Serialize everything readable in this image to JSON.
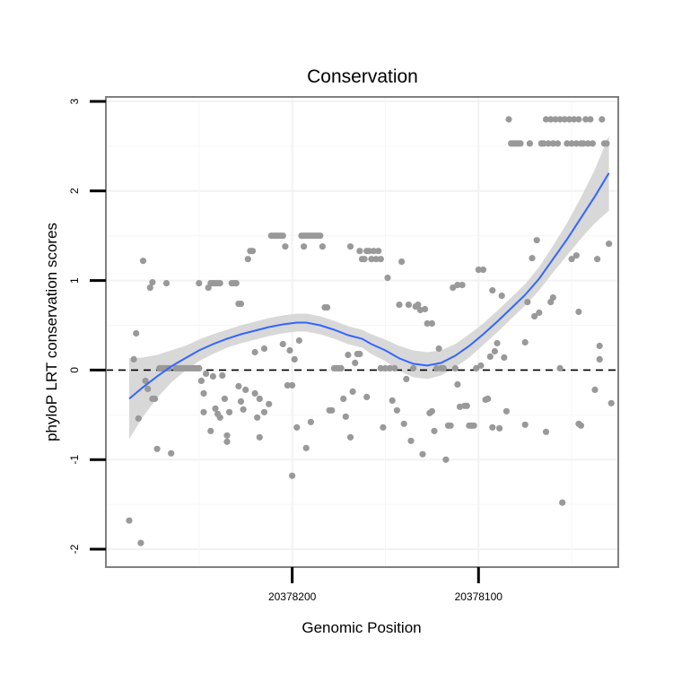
{
  "chart_data": {
    "type": "scatter",
    "title": "Conservation",
    "xlabel": "Genomic Position",
    "ylabel": "phyloP LRT conservation scores",
    "x_ticks": [
      {
        "label": "20378200",
        "at": 0.4
      },
      {
        "label": "20378100",
        "at": 0.8
      }
    ],
    "xlim": [
      0,
      1.1
    ],
    "ylim": [
      -2.2,
      3.05
    ],
    "y_ticks": [
      -2,
      -1,
      0,
      1,
      2,
      3
    ],
    "reference_line": {
      "y": 0,
      "style": "dashed",
      "color": "#000000"
    },
    "grid": true,
    "colors": {
      "points": "#999999",
      "smooth": "#3366ff",
      "band": "#d4d4d4",
      "panel_border": "#808080"
    },
    "points": [
      [
        0.05,
        -1.68
      ],
      [
        0.06,
        0.12
      ],
      [
        0.065,
        0.41
      ],
      [
        0.07,
        -0.54
      ],
      [
        0.075,
        -1.93
      ],
      [
        0.08,
        1.22
      ],
      [
        0.085,
        -0.12
      ],
      [
        0.09,
        -0.21
      ],
      [
        0.095,
        0.92
      ],
      [
        0.1,
        0.98
      ],
      [
        0.1,
        -0.32
      ],
      [
        0.105,
        -0.32
      ],
      [
        0.11,
        -0.88
      ],
      [
        0.115,
        0.02
      ],
      [
        0.12,
        0.02
      ],
      [
        0.125,
        0.02
      ],
      [
        0.13,
        0.02
      ],
      [
        0.135,
        0.02
      ],
      [
        0.13,
        0.97
      ],
      [
        0.14,
        -0.93
      ],
      [
        0.15,
        0.02
      ],
      [
        0.155,
        0.02
      ],
      [
        0.16,
        0.02
      ],
      [
        0.165,
        0.02
      ],
      [
        0.17,
        0.02
      ],
      [
        0.175,
        0.02
      ],
      [
        0.18,
        0.02
      ],
      [
        0.185,
        0.02
      ],
      [
        0.19,
        0.02
      ],
      [
        0.195,
        0.02
      ],
      [
        0.2,
        0.02
      ],
      [
        0.2,
        0.97
      ],
      [
        0.205,
        -0.12
      ],
      [
        0.21,
        -0.26
      ],
      [
        0.21,
        -0.47
      ],
      [
        0.215,
        -0.04
      ],
      [
        0.22,
        0.92
      ],
      [
        0.225,
        0.97
      ],
      [
        0.23,
        0.97
      ],
      [
        0.235,
        0.97
      ],
      [
        0.24,
        0.97
      ],
      [
        0.245,
        0.97
      ],
      [
        0.225,
        -0.68
      ],
      [
        0.23,
        -0.07
      ],
      [
        0.235,
        -0.43
      ],
      [
        0.24,
        -0.49
      ],
      [
        0.245,
        -0.53
      ],
      [
        0.25,
        -0.06
      ],
      [
        0.255,
        -0.32
      ],
      [
        0.26,
        -0.73
      ],
      [
        0.26,
        -0.8
      ],
      [
        0.265,
        -0.47
      ],
      [
        0.27,
        0.97
      ],
      [
        0.275,
        0.97
      ],
      [
        0.28,
        0.97
      ],
      [
        0.285,
        0.74
      ],
      [
        0.29,
        0.74
      ],
      [
        0.285,
        -0.18
      ],
      [
        0.29,
        -0.35
      ],
      [
        0.295,
        -0.44
      ],
      [
        0.3,
        -0.22
      ],
      [
        0.305,
        1.24
      ],
      [
        0.31,
        1.33
      ],
      [
        0.315,
        1.33
      ],
      [
        0.32,
        0.2
      ],
      [
        0.32,
        -0.26
      ],
      [
        0.325,
        -0.53
      ],
      [
        0.33,
        -0.32
      ],
      [
        0.33,
        -0.75
      ],
      [
        0.34,
        -0.47
      ],
      [
        0.34,
        0.24
      ],
      [
        0.35,
        -0.38
      ],
      [
        0.355,
        1.5
      ],
      [
        0.36,
        1.5
      ],
      [
        0.365,
        1.5
      ],
      [
        0.37,
        1.5
      ],
      [
        0.375,
        1.5
      ],
      [
        0.38,
        1.5
      ],
      [
        0.38,
        0.29
      ],
      [
        0.385,
        1.38
      ],
      [
        0.39,
        -0.17
      ],
      [
        0.395,
        0.22
      ],
      [
        0.4,
        -0.17
      ],
      [
        0.4,
        -1.18
      ],
      [
        0.405,
        0.12
      ],
      [
        0.41,
        -0.64
      ],
      [
        0.415,
        0.33
      ],
      [
        0.42,
        1.5
      ],
      [
        0.425,
        1.5
      ],
      [
        0.43,
        1.5
      ],
      [
        0.435,
        1.5
      ],
      [
        0.44,
        1.5
      ],
      [
        0.445,
        1.5
      ],
      [
        0.45,
        1.5
      ],
      [
        0.455,
        1.5
      ],
      [
        0.46,
        1.5
      ],
      [
        0.425,
        1.38
      ],
      [
        0.43,
        -0.87
      ],
      [
        0.44,
        -0.58
      ],
      [
        0.465,
        1.38
      ],
      [
        0.47,
        0.7
      ],
      [
        0.475,
        0.7
      ],
      [
        0.48,
        -0.45
      ],
      [
        0.485,
        -0.45
      ],
      [
        0.49,
        0.02
      ],
      [
        0.495,
        0.02
      ],
      [
        0.5,
        0.02
      ],
      [
        0.505,
        0.02
      ],
      [
        0.51,
        -0.32
      ],
      [
        0.515,
        -0.52
      ],
      [
        0.52,
        0.17
      ],
      [
        0.525,
        -0.75
      ],
      [
        0.525,
        1.38
      ],
      [
        0.53,
        -0.24
      ],
      [
        0.535,
        0.08
      ],
      [
        0.54,
        0.18
      ],
      [
        0.545,
        0.18
      ],
      [
        0.545,
        1.33
      ],
      [
        0.55,
        1.24
      ],
      [
        0.555,
        1.24
      ],
      [
        0.56,
        -0.3
      ],
      [
        0.56,
        1.33
      ],
      [
        0.565,
        1.33
      ],
      [
        0.57,
        1.24
      ],
      [
        0.575,
        1.33
      ],
      [
        0.58,
        1.24
      ],
      [
        0.585,
        1.33
      ],
      [
        0.59,
        1.24
      ],
      [
        0.59,
        0.02
      ],
      [
        0.595,
        -0.64
      ],
      [
        0.6,
        0.02
      ],
      [
        0.605,
        1.03
      ],
      [
        0.61,
        0.02
      ],
      [
        0.615,
        -0.34
      ],
      [
        0.62,
        0.02
      ],
      [
        0.625,
        -0.45
      ],
      [
        0.63,
        0.73
      ],
      [
        0.635,
        1.21
      ],
      [
        0.64,
        -0.6
      ],
      [
        0.645,
        -0.1
      ],
      [
        0.65,
        0.73
      ],
      [
        0.655,
        -0.79
      ],
      [
        0.66,
        0.02
      ],
      [
        0.665,
        0.71
      ],
      [
        0.67,
        0.73
      ],
      [
        0.675,
        0.67
      ],
      [
        0.68,
        -0.94
      ],
      [
        0.685,
        0.68
      ],
      [
        0.69,
        0.52
      ],
      [
        0.695,
        -0.48
      ],
      [
        0.7,
        -0.46
      ],
      [
        0.7,
        0.52
      ],
      [
        0.705,
        -0.68
      ],
      [
        0.71,
        0.02
      ],
      [
        0.715,
        0.24
      ],
      [
        0.72,
        0.02
      ],
      [
        0.725,
        0.02
      ],
      [
        0.73,
        -1.0
      ],
      [
        0.735,
        -0.62
      ],
      [
        0.74,
        -0.62
      ],
      [
        0.745,
        0.92
      ],
      [
        0.75,
        0.02
      ],
      [
        0.755,
        0.95
      ],
      [
        0.755,
        -0.16
      ],
      [
        0.76,
        -0.41
      ],
      [
        0.765,
        0.95
      ],
      [
        0.77,
        -0.4
      ],
      [
        0.775,
        -0.4
      ],
      [
        0.78,
        -0.62
      ],
      [
        0.785,
        -0.62
      ],
      [
        0.79,
        -0.62
      ],
      [
        0.795,
        0.02
      ],
      [
        0.8,
        1.12
      ],
      [
        0.805,
        0.05
      ],
      [
        0.81,
        1.12
      ],
      [
        0.815,
        -0.33
      ],
      [
        0.82,
        -0.32
      ],
      [
        0.825,
        0.15
      ],
      [
        0.83,
        -0.64
      ],
      [
        0.83,
        0.89
      ],
      [
        0.835,
        0.21
      ],
      [
        0.84,
        0.3
      ],
      [
        0.845,
        -0.65
      ],
      [
        0.85,
        0.83
      ],
      [
        0.855,
        0.14
      ],
      [
        0.86,
        -0.46
      ],
      [
        0.865,
        2.8
      ],
      [
        0.87,
        2.53
      ],
      [
        0.875,
        2.53
      ],
      [
        0.88,
        2.53
      ],
      [
        0.885,
        2.53
      ],
      [
        0.89,
        2.53
      ],
      [
        0.9,
        -0.61
      ],
      [
        0.9,
        0.31
      ],
      [
        0.905,
        0.76
      ],
      [
        0.91,
        2.53
      ],
      [
        0.915,
        1.25
      ],
      [
        0.92,
        0.6
      ],
      [
        0.925,
        1.45
      ],
      [
        0.93,
        0.64
      ],
      [
        0.935,
        2.53
      ],
      [
        0.94,
        2.53
      ],
      [
        0.945,
        2.8
      ],
      [
        0.95,
        2.53
      ],
      [
        0.955,
        2.8
      ],
      [
        0.96,
        2.53
      ],
      [
        0.965,
        2.8
      ],
      [
        0.97,
        2.53
      ],
      [
        0.975,
        2.8
      ],
      [
        0.98,
        -1.48
      ],
      [
        0.985,
        2.8
      ],
      [
        0.99,
        2.53
      ],
      [
        0.995,
        2.8
      ],
      [
        1.0,
        2.53
      ],
      [
        1.005,
        2.8
      ],
      [
        1.01,
        2.53
      ],
      [
        1.015,
        2.8
      ],
      [
        1.02,
        2.53
      ],
      [
        0.945,
        -0.69
      ],
      [
        0.955,
        0.76
      ],
      [
        0.96,
        0.81
      ],
      [
        0.975,
        0.02
      ],
      [
        1.0,
        1.24
      ],
      [
        1.01,
        1.28
      ],
      [
        1.015,
        -0.6
      ],
      [
        1.02,
        -0.62
      ],
      [
        1.025,
        2.53
      ],
      [
        1.03,
        2.8
      ],
      [
        1.035,
        2.53
      ],
      [
        1.04,
        2.8
      ],
      [
        1.045,
        2.53
      ],
      [
        1.05,
        -0.22
      ],
      [
        1.055,
        1.24
      ],
      [
        1.06,
        0.27
      ],
      [
        1.065,
        2.8
      ],
      [
        1.07,
        2.53
      ],
      [
        1.075,
        2.53
      ],
      [
        1.08,
        1.41
      ],
      [
        1.085,
        -0.37
      ],
      [
        1.015,
        0.65
      ],
      [
        1.06,
        0.12
      ]
    ],
    "smooth": [
      [
        0.05,
        -0.32
      ],
      [
        0.08,
        -0.19
      ],
      [
        0.11,
        -0.07
      ],
      [
        0.14,
        0.04
      ],
      [
        0.17,
        0.13
      ],
      [
        0.2,
        0.22
      ],
      [
        0.23,
        0.29
      ],
      [
        0.26,
        0.35
      ],
      [
        0.29,
        0.4
      ],
      [
        0.32,
        0.44
      ],
      [
        0.35,
        0.48
      ],
      [
        0.38,
        0.51
      ],
      [
        0.41,
        0.53
      ],
      [
        0.43,
        0.53
      ],
      [
        0.46,
        0.5
      ],
      [
        0.49,
        0.45
      ],
      [
        0.52,
        0.39
      ],
      [
        0.55,
        0.35
      ],
      [
        0.57,
        0.29
      ],
      [
        0.6,
        0.22
      ],
      [
        0.63,
        0.13
      ],
      [
        0.66,
        0.07
      ],
      [
        0.69,
        0.05
      ],
      [
        0.72,
        0.08
      ],
      [
        0.75,
        0.16
      ],
      [
        0.78,
        0.27
      ],
      [
        0.81,
        0.4
      ],
      [
        0.84,
        0.54
      ],
      [
        0.87,
        0.69
      ],
      [
        0.9,
        0.84
      ],
      [
        0.93,
        1.02
      ],
      [
        0.96,
        1.24
      ],
      [
        0.99,
        1.46
      ],
      [
        1.02,
        1.7
      ],
      [
        1.05,
        1.94
      ],
      [
        1.08,
        2.2
      ]
    ],
    "band_halfwidth": [
      0.45,
      0.33,
      0.24,
      0.18,
      0.14,
      0.12,
      0.11,
      0.1,
      0.1,
      0.1,
      0.1,
      0.1,
      0.1,
      0.1,
      0.1,
      0.1,
      0.1,
      0.1,
      0.11,
      0.12,
      0.14,
      0.15,
      0.15,
      0.14,
      0.13,
      0.13,
      0.12,
      0.12,
      0.12,
      0.12,
      0.13,
      0.15,
      0.18,
      0.23,
      0.3,
      0.42
    ]
  }
}
